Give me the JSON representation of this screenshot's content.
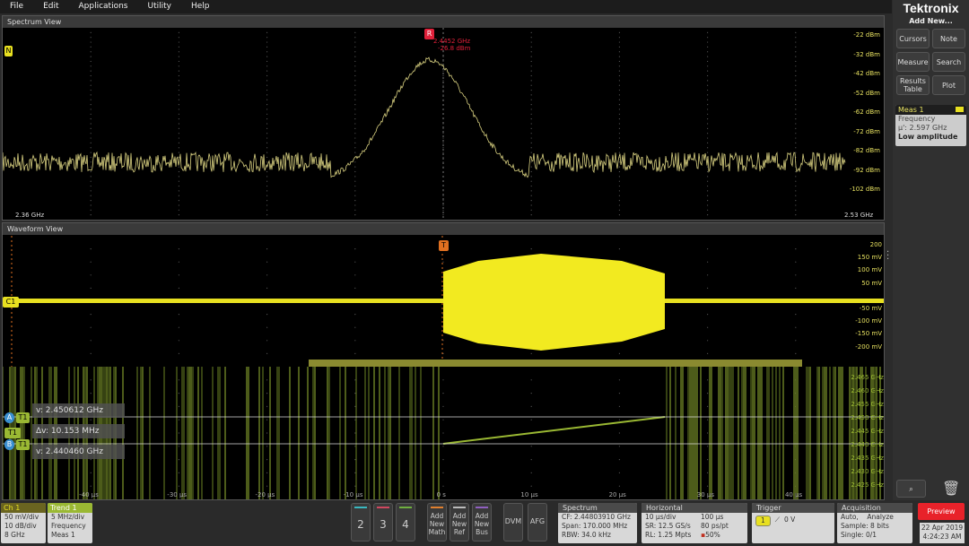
{
  "menu": [
    "File",
    "Edit",
    "Applications",
    "Utility",
    "Help"
  ],
  "spectrum": {
    "title": "Spectrum View",
    "start": "2.36 GHz",
    "stop": "2.53 GHz",
    "y_ticks": [
      "-22 dBm",
      "-32 dBm",
      "-42 dBm",
      "-52 dBm",
      "-62 dBm",
      "-72 dBm",
      "-82 dBm",
      "-92 dBm",
      "-102 dBm"
    ],
    "marker": {
      "label": "R",
      "freq": "2.4452 GHz",
      "level": "-26.8 dBm"
    },
    "ref_tag": "N"
  },
  "waveform": {
    "title": "Waveform View",
    "y_ticks": [
      "200",
      "150 mV",
      "100 mV",
      "50 mV",
      "-50 mV",
      "-100 mV",
      "-150 mV",
      "-200 mV"
    ],
    "ch_tag": "C1",
    "trigger_tag": "T",
    "trend_ticks": [
      "2.465 GHz",
      "2.460 GHz",
      "2.455 GHz",
      "2.450 GHz",
      "2.445 GHz",
      "2.440 GHz",
      "2.435 GHz",
      "2.430 GHz",
      "2.425 GHz"
    ],
    "time_ticks": [
      "-40 µs",
      "-30 µs",
      "-20 µs",
      "-10 µs",
      "0 s",
      "10 µs",
      "20 µs",
      "30 µs",
      "40 µs"
    ],
    "cursors": {
      "a_label": "A",
      "b_label": "B",
      "trace": "T1",
      "a_value": "v: 2.450612 GHz",
      "delta": "Δv: 10.153 MHz",
      "b_value": "v: 2.440460 GHz"
    }
  },
  "sidebar": {
    "logo": "Tektronix",
    "add_new": "Add New...",
    "buttons": [
      "Cursors",
      "Note",
      "Measure",
      "Search",
      "Results Table",
      "Plot"
    ],
    "meas": {
      "title": "Meas 1",
      "lines": [
        "Frequency",
        "µ': 2.597 GHz",
        "Low amplitude"
      ]
    }
  },
  "bottom": {
    "ch1": {
      "title": "Ch 1",
      "lines": [
        "50 mV/div",
        "10 dB/div",
        "8 GHz"
      ]
    },
    "trend1": {
      "title": "Trend 1",
      "lines": [
        "5 MHz/div",
        "Frequency",
        "Meas 1"
      ]
    },
    "channels": [
      "2",
      "3",
      "4"
    ],
    "add": [
      [
        "Add",
        "New",
        "Math"
      ],
      [
        "Add",
        "New",
        "Ref"
      ],
      [
        "Add",
        "New",
        "Bus"
      ]
    ],
    "dvm": "DVM",
    "afg": "AFG",
    "spectrum": {
      "title": "Spectrum",
      "lines": [
        "CF: 2.44803910 GHz",
        "Span: 170.000 MHz",
        "RBW: 34.0 kHz"
      ]
    },
    "horizontal": {
      "title": "Horizontal",
      "left": [
        "10 µs/div",
        "SR: 12.5 GS/s",
        "RL: 1.25 Mpts"
      ],
      "right": [
        "100 µs",
        "80 ps/pt",
        "50%"
      ]
    },
    "trigger": {
      "title": "Trigger",
      "source": "1",
      "level": "0 V"
    },
    "acquisition": {
      "title": "Acquisition",
      "lines": [
        "Auto,    Analyze",
        "Sample: 8 bits",
        "Single: 0/1"
      ]
    },
    "preview": "Preview",
    "date": "22 Apr 2019",
    "time": "4:24:23 AM"
  },
  "colors": {
    "ch1": "#e8e020",
    "trend": "#9ab833",
    "marker": "#e0203a",
    "preview": "#e8222a"
  }
}
